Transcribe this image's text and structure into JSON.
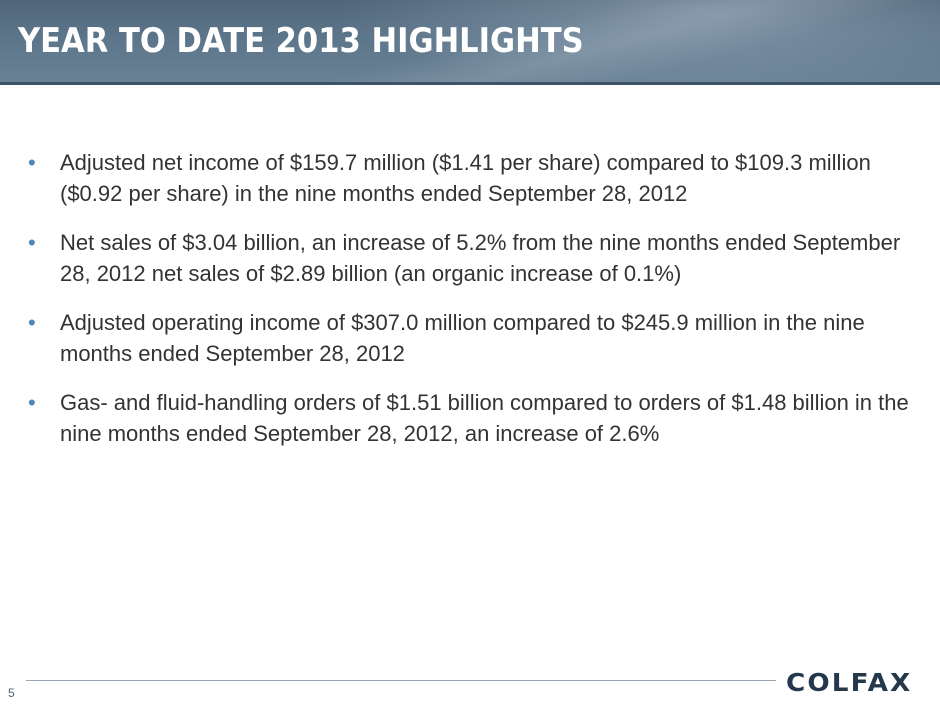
{
  "slide": {
    "title": "YEAR TO DATE 2013 HIGHLIGHTS",
    "bullets": [
      "Adjusted net income of $159.7 million ($1.41 per share) compared to $109.3 million ($0.92 per share) in the nine months ended September 28, 2012",
      "Net sales of $3.04 billion, an increase of 5.2% from the nine months ended September 28, 2012 net sales of $2.89 billion (an organic increase of 0.1%)",
      "Adjusted operating income of $307.0 million compared to $245.9 million in the nine months ended September 28, 2012",
      "Gas- and fluid-handling orders of $1.51 billion compared to orders of $1.48 billion in the nine months ended September 28, 2012, an increase of 2.6%"
    ],
    "bullet_symbol": "•",
    "page_number": "5",
    "logo_text": "COLFAX"
  },
  "colors": {
    "header": "#5c7489",
    "bullet": "#4f86b8",
    "text": "#333333",
    "logo": "#24384c"
  }
}
